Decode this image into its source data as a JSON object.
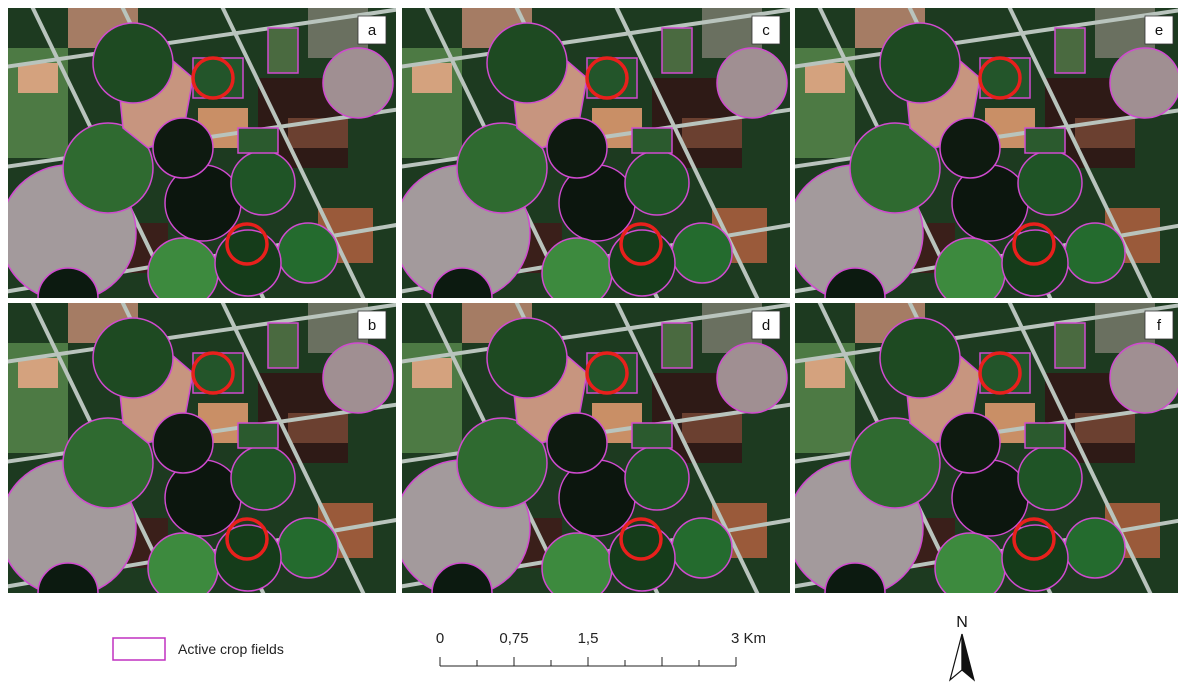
{
  "panels": [
    {
      "label": "a"
    },
    {
      "label": "c"
    },
    {
      "label": "e"
    },
    {
      "label": "b"
    },
    {
      "label": "d"
    },
    {
      "label": "f"
    }
  ],
  "legend": {
    "label": "Active crop fields"
  },
  "scale_bar": {
    "labels": [
      "0",
      "0,75",
      "1,5",
      "3 Km"
    ]
  },
  "north_arrow": {
    "label": "N"
  }
}
